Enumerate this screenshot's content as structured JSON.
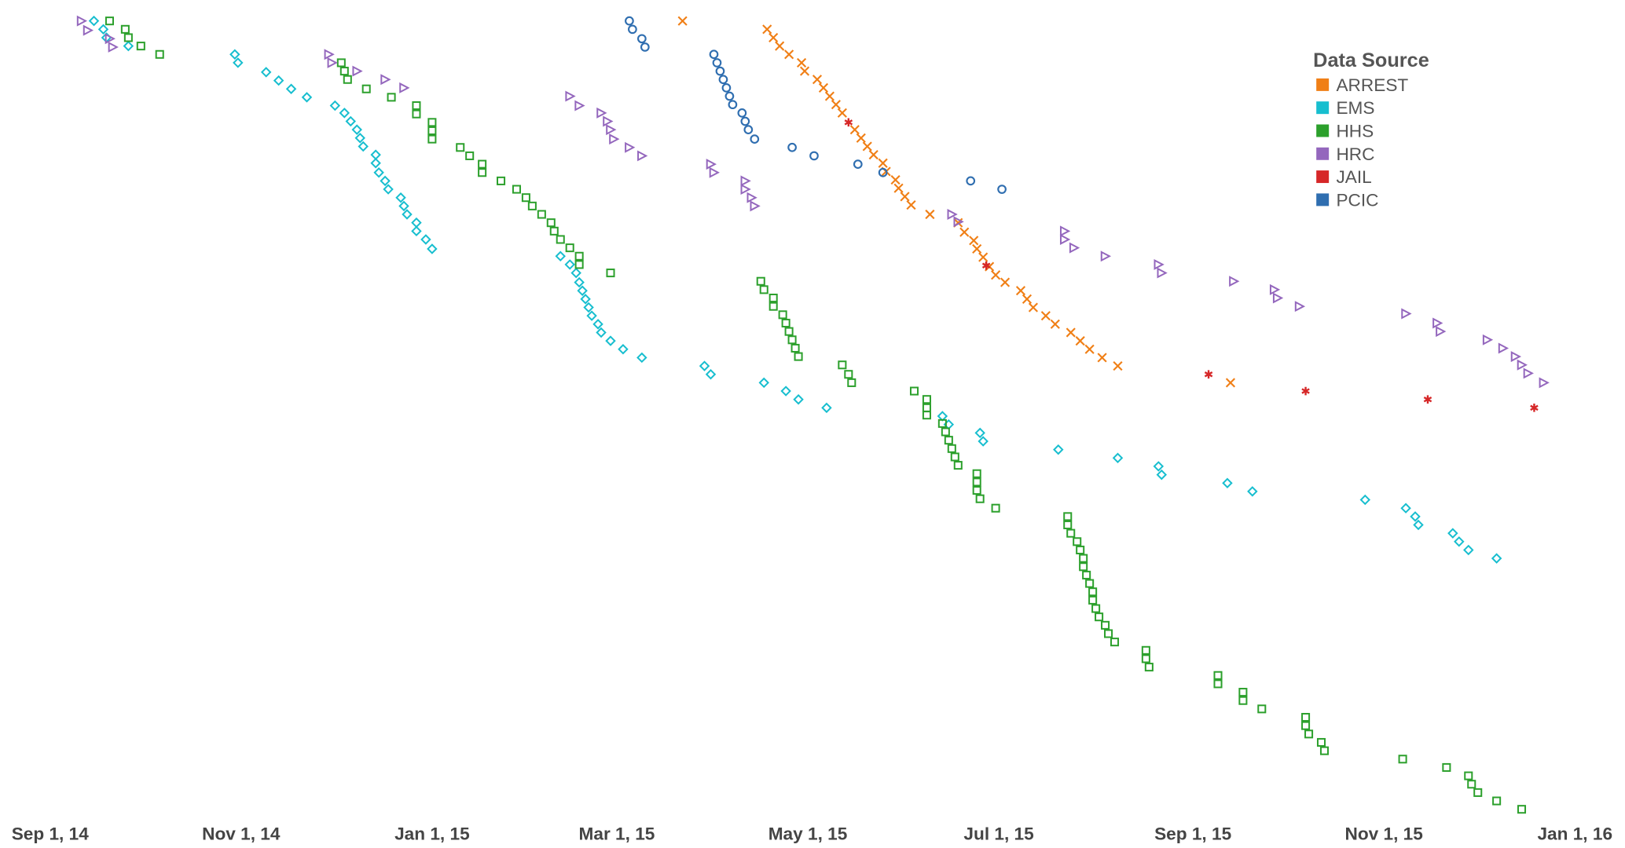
{
  "chart_data": {
    "type": "scatter",
    "legend_title": "Data Source",
    "legend": "top-right",
    "grid": false,
    "xlim": [
      "2014-08-16",
      "2016-01-17"
    ],
    "ylim": [
      0,
      780
    ],
    "xticks": [
      {
        "value": "2014-09-01",
        "label": "Sep 1, 14"
      },
      {
        "value": "2014-11-01",
        "label": "Nov 1, 14"
      },
      {
        "value": "2015-01-01",
        "label": "Jan 1, 15"
      },
      {
        "value": "2015-03-01",
        "label": "Mar 1, 15"
      },
      {
        "value": "2015-05-01",
        "label": "May 1, 15"
      },
      {
        "value": "2015-07-01",
        "label": "Jul 1, 15"
      },
      {
        "value": "2015-09-01",
        "label": "Sep 1, 15"
      },
      {
        "value": "2015-11-01",
        "label": "Nov 1, 15"
      },
      {
        "value": "2016-01-01",
        "label": "Jan 1, 16"
      }
    ],
    "series": [
      {
        "name": "ARREST",
        "color": "#f07f16",
        "marker": "x",
        "x": [
          "2015-03-22",
          "2015-04-18",
          "2015-04-20",
          "2015-04-22",
          "2015-04-25",
          "2015-04-29",
          "2015-04-30",
          "2015-05-04",
          "2015-05-06",
          "2015-05-08",
          "2015-05-10",
          "2015-05-12",
          "2015-05-16",
          "2015-05-18",
          "2015-05-20",
          "2015-05-22",
          "2015-05-25",
          "2015-05-26",
          "2015-05-29",
          "2015-05-30",
          "2015-06-01",
          "2015-06-03",
          "2015-06-09",
          "2015-06-18",
          "2015-06-20",
          "2015-06-23",
          "2015-06-24",
          "2015-06-26",
          "2015-06-28",
          "2015-06-30",
          "2015-07-03",
          "2015-07-08",
          "2015-07-10",
          "2015-07-12",
          "2015-07-16",
          "2015-07-19",
          "2015-07-24",
          "2015-07-27",
          "2015-07-30",
          "2015-08-03",
          "2015-08-08",
          "2015-09-13"
        ],
        "values": [
          760,
          752,
          744,
          736,
          728,
          720,
          712,
          704,
          696,
          688,
          680,
          672,
          656,
          648,
          640,
          632,
          624,
          616,
          608,
          600,
          592,
          584,
          575,
          567,
          558,
          550,
          542,
          534,
          525,
          517,
          510,
          502,
          494,
          486,
          478,
          470,
          462,
          454,
          446,
          438,
          430,
          414
        ]
      },
      {
        "name": "EMS",
        "color": "#17becf",
        "marker": "diamond",
        "x": [
          "2014-09-15",
          "2014-09-18",
          "2014-09-19",
          "2014-09-26",
          "2014-10-30",
          "2014-10-31",
          "2014-11-09",
          "2014-11-13",
          "2014-11-17",
          "2014-11-22",
          "2014-12-01",
          "2014-12-04",
          "2014-12-06",
          "2014-12-08",
          "2014-12-09",
          "2014-12-10",
          "2014-12-14",
          "2014-12-14",
          "2014-12-15",
          "2014-12-17",
          "2014-12-18",
          "2014-12-22",
          "2014-12-23",
          "2014-12-24",
          "2014-12-27",
          "2014-12-27",
          "2014-12-30",
          "2015-01-01",
          "2015-02-11",
          "2015-02-14",
          "2015-02-16",
          "2015-02-17",
          "2015-02-18",
          "2015-02-19",
          "2015-02-20",
          "2015-02-21",
          "2015-02-23",
          "2015-02-24",
          "2015-02-27",
          "2015-03-03",
          "2015-03-09",
          "2015-03-29",
          "2015-03-31",
          "2015-04-17",
          "2015-04-24",
          "2015-04-28",
          "2015-05-07",
          "2015-06-13",
          "2015-06-15",
          "2015-06-25",
          "2015-06-26",
          "2015-07-20",
          "2015-08-08",
          "2015-08-21",
          "2015-08-22",
          "2015-09-12",
          "2015-09-20",
          "2015-10-26",
          "2015-11-08",
          "2015-11-11",
          "2015-11-12",
          "2015-11-23",
          "2015-11-25",
          "2015-11-28",
          "2015-12-07"
        ],
        "values": [
          760,
          752,
          744,
          736,
          728,
          720,
          711,
          703,
          695,
          687,
          679,
          672,
          664,
          656,
          648,
          640,
          632,
          624,
          615,
          607,
          599,
          591,
          583,
          575,
          567,
          559,
          551,
          542,
          535,
          527,
          519,
          510,
          502,
          494,
          486,
          478,
          470,
          462,
          454,
          446,
          438,
          430,
          422,
          414,
          406,
          398,
          390,
          382,
          374,
          366,
          358,
          350,
          342,
          334,
          326,
          318,
          310,
          302,
          294,
          286,
          278,
          270,
          262,
          254,
          246
        ]
      },
      {
        "name": "HHS",
        "color": "#2ca02c",
        "marker": "square",
        "x": [
          "2014-09-20",
          "2014-09-25",
          "2014-09-26",
          "2014-09-30",
          "2014-10-06",
          "2014-12-03",
          "2014-12-04",
          "2014-12-05",
          "2014-12-11",
          "2014-12-19",
          "2014-12-27",
          "2014-12-27",
          "2015-01-01",
          "2015-01-01",
          "2015-01-01",
          "2015-01-10",
          "2015-01-13",
          "2015-01-17",
          "2015-01-17",
          "2015-01-23",
          "2015-01-28",
          "2015-01-31",
          "2015-02-02",
          "2015-02-05",
          "2015-02-08",
          "2015-02-09",
          "2015-02-11",
          "2015-02-14",
          "2015-02-17",
          "2015-02-17",
          "2015-02-27",
          "2015-04-16",
          "2015-04-17",
          "2015-04-20",
          "2015-04-20",
          "2015-04-23",
          "2015-04-24",
          "2015-04-25",
          "2015-04-26",
          "2015-04-27",
          "2015-04-28",
          "2015-05-12",
          "2015-05-14",
          "2015-05-15",
          "2015-06-04",
          "2015-06-08",
          "2015-06-08",
          "2015-06-08",
          "2015-06-13",
          "2015-06-14",
          "2015-06-15",
          "2015-06-16",
          "2015-06-17",
          "2015-06-18",
          "2015-06-24",
          "2015-06-24",
          "2015-06-24",
          "2015-06-25",
          "2015-06-30",
          "2015-07-23",
          "2015-07-23",
          "2015-07-24",
          "2015-07-26",
          "2015-07-27",
          "2015-07-28",
          "2015-07-28",
          "2015-07-29",
          "2015-07-30",
          "2015-07-31",
          "2015-07-31",
          "2015-08-01",
          "2015-08-02",
          "2015-08-04",
          "2015-08-05",
          "2015-08-07",
          "2015-08-17",
          "2015-08-17",
          "2015-08-18",
          "2015-09-09",
          "2015-09-09",
          "2015-09-17",
          "2015-09-17",
          "2015-09-23",
          "2015-10-07",
          "2015-10-07",
          "2015-10-08",
          "2015-10-12",
          "2015-10-13",
          "2015-11-07",
          "2015-11-21",
          "2015-11-28",
          "2015-11-29",
          "2015-12-01",
          "2015-12-07",
          "2015-12-15"
        ],
        "values": [
          760,
          752,
          744,
          736,
          728,
          720,
          712,
          704,
          695,
          687,
          679,
          671,
          663,
          655,
          647,
          639,
          631,
          623,
          615,
          607,
          599,
          591,
          583,
          575,
          567,
          559,
          551,
          543,
          535,
          527,
          519,
          511,
          503,
          495,
          487,
          479,
          471,
          463,
          455,
          447,
          439,
          431,
          422,
          414,
          406,
          398,
          390,
          383,
          375,
          367,
          359,
          351,
          343,
          335,
          327,
          319,
          311,
          303,
          294,
          286,
          278,
          270,
          262,
          254,
          246,
          238,
          230,
          222,
          214,
          206,
          198,
          190,
          182,
          174,
          166,
          158,
          150,
          142,
          134,
          126,
          118,
          110,
          102,
          94,
          86,
          78,
          70,
          62,
          54,
          46,
          38,
          30,
          22,
          14,
          6
        ]
      },
      {
        "name": "HRC",
        "color": "#9467bd",
        "marker": "triangle-right",
        "x": [
          "2014-09-11",
          "2014-09-13",
          "2014-09-20",
          "2014-09-21",
          "2014-11-29",
          "2014-11-30",
          "2014-12-08",
          "2014-12-17",
          "2014-12-23",
          "2015-02-14",
          "2015-02-17",
          "2015-02-24",
          "2015-02-26",
          "2015-02-27",
          "2015-02-28",
          "2015-03-05",
          "2015-03-09",
          "2015-03-31",
          "2015-04-01",
          "2015-04-11",
          "2015-04-11",
          "2015-04-13",
          "2015-04-14",
          "2015-06-16",
          "2015-06-18",
          "2015-07-22",
          "2015-07-22",
          "2015-07-25",
          "2015-08-04",
          "2015-08-21",
          "2015-08-22",
          "2015-09-14",
          "2015-09-27",
          "2015-09-28",
          "2015-10-05",
          "2015-11-08",
          "2015-11-18",
          "2015-11-19",
          "2015-12-04",
          "2015-12-09",
          "2015-12-13",
          "2015-12-15",
          "2015-12-17",
          "2015-12-22"
        ],
        "values": [
          760,
          751,
          743,
          735,
          728,
          720,
          712,
          704,
          696,
          688,
          679,
          672,
          664,
          656,
          647,
          639,
          631,
          623,
          615,
          607,
          599,
          591,
          583,
          575,
          568,
          559,
          551,
          543,
          535,
          527,
          519,
          511,
          503,
          495,
          487,
          480,
          471,
          463,
          455,
          447,
          439,
          431,
          423,
          414
        ]
      },
      {
        "name": "JAIL",
        "color": "#d62728",
        "marker": "asterisk",
        "x": [
          "2015-05-14",
          "2015-06-27",
          "2015-09-06",
          "2015-10-07",
          "2015-11-15",
          "2015-12-19"
        ],
        "values": [
          663,
          526,
          422,
          406,
          398,
          390
        ]
      },
      {
        "name": "PCIC",
        "color": "#2f6eb0",
        "marker": "circle",
        "x": [
          "2015-03-05",
          "2015-03-06",
          "2015-03-09",
          "2015-03-10",
          "2015-04-01",
          "2015-04-02",
          "2015-04-03",
          "2015-04-04",
          "2015-04-05",
          "2015-04-06",
          "2015-04-07",
          "2015-04-10",
          "2015-04-11",
          "2015-04-12",
          "2015-04-14",
          "2015-04-26",
          "2015-05-03",
          "2015-05-17",
          "2015-05-25",
          "2015-06-22",
          "2015-07-02"
        ],
        "values": [
          760,
          752,
          743,
          735,
          728,
          720,
          712,
          704,
          696,
          688,
          680,
          672,
          664,
          656,
          647,
          639,
          631,
          623,
          615,
          607,
          599
        ]
      }
    ]
  }
}
